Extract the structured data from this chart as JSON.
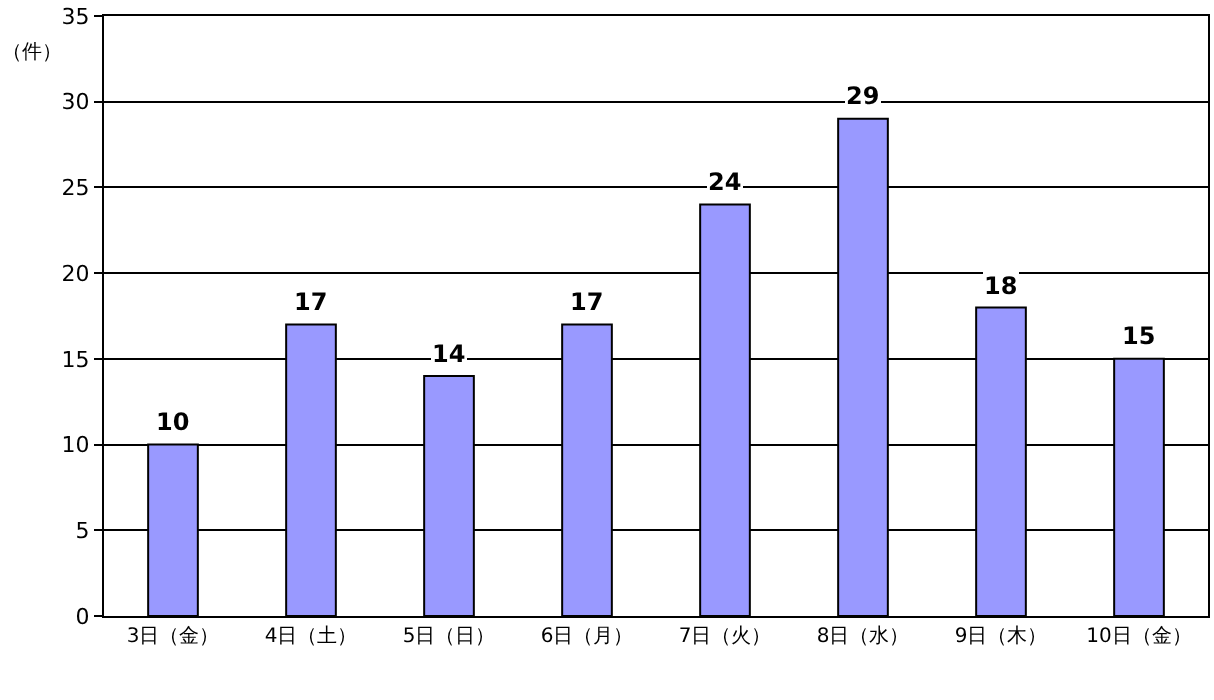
{
  "chart_data": {
    "type": "bar",
    "ylabel": "（件）",
    "categories": [
      "3日（金）",
      "4日（土）",
      "5日（日）",
      "6日（月）",
      "7日（火）",
      "8日（水）",
      "9日（木）",
      "10日（金）"
    ],
    "values": [
      10,
      17,
      14,
      17,
      24,
      29,
      18,
      15
    ],
    "color": "#9999ff",
    "ylim": [
      0,
      35
    ],
    "yticks": [
      0,
      5,
      10,
      15,
      20,
      25,
      30,
      35
    ],
    "grid": "y",
    "data_labels": true,
    "legend": false
  }
}
